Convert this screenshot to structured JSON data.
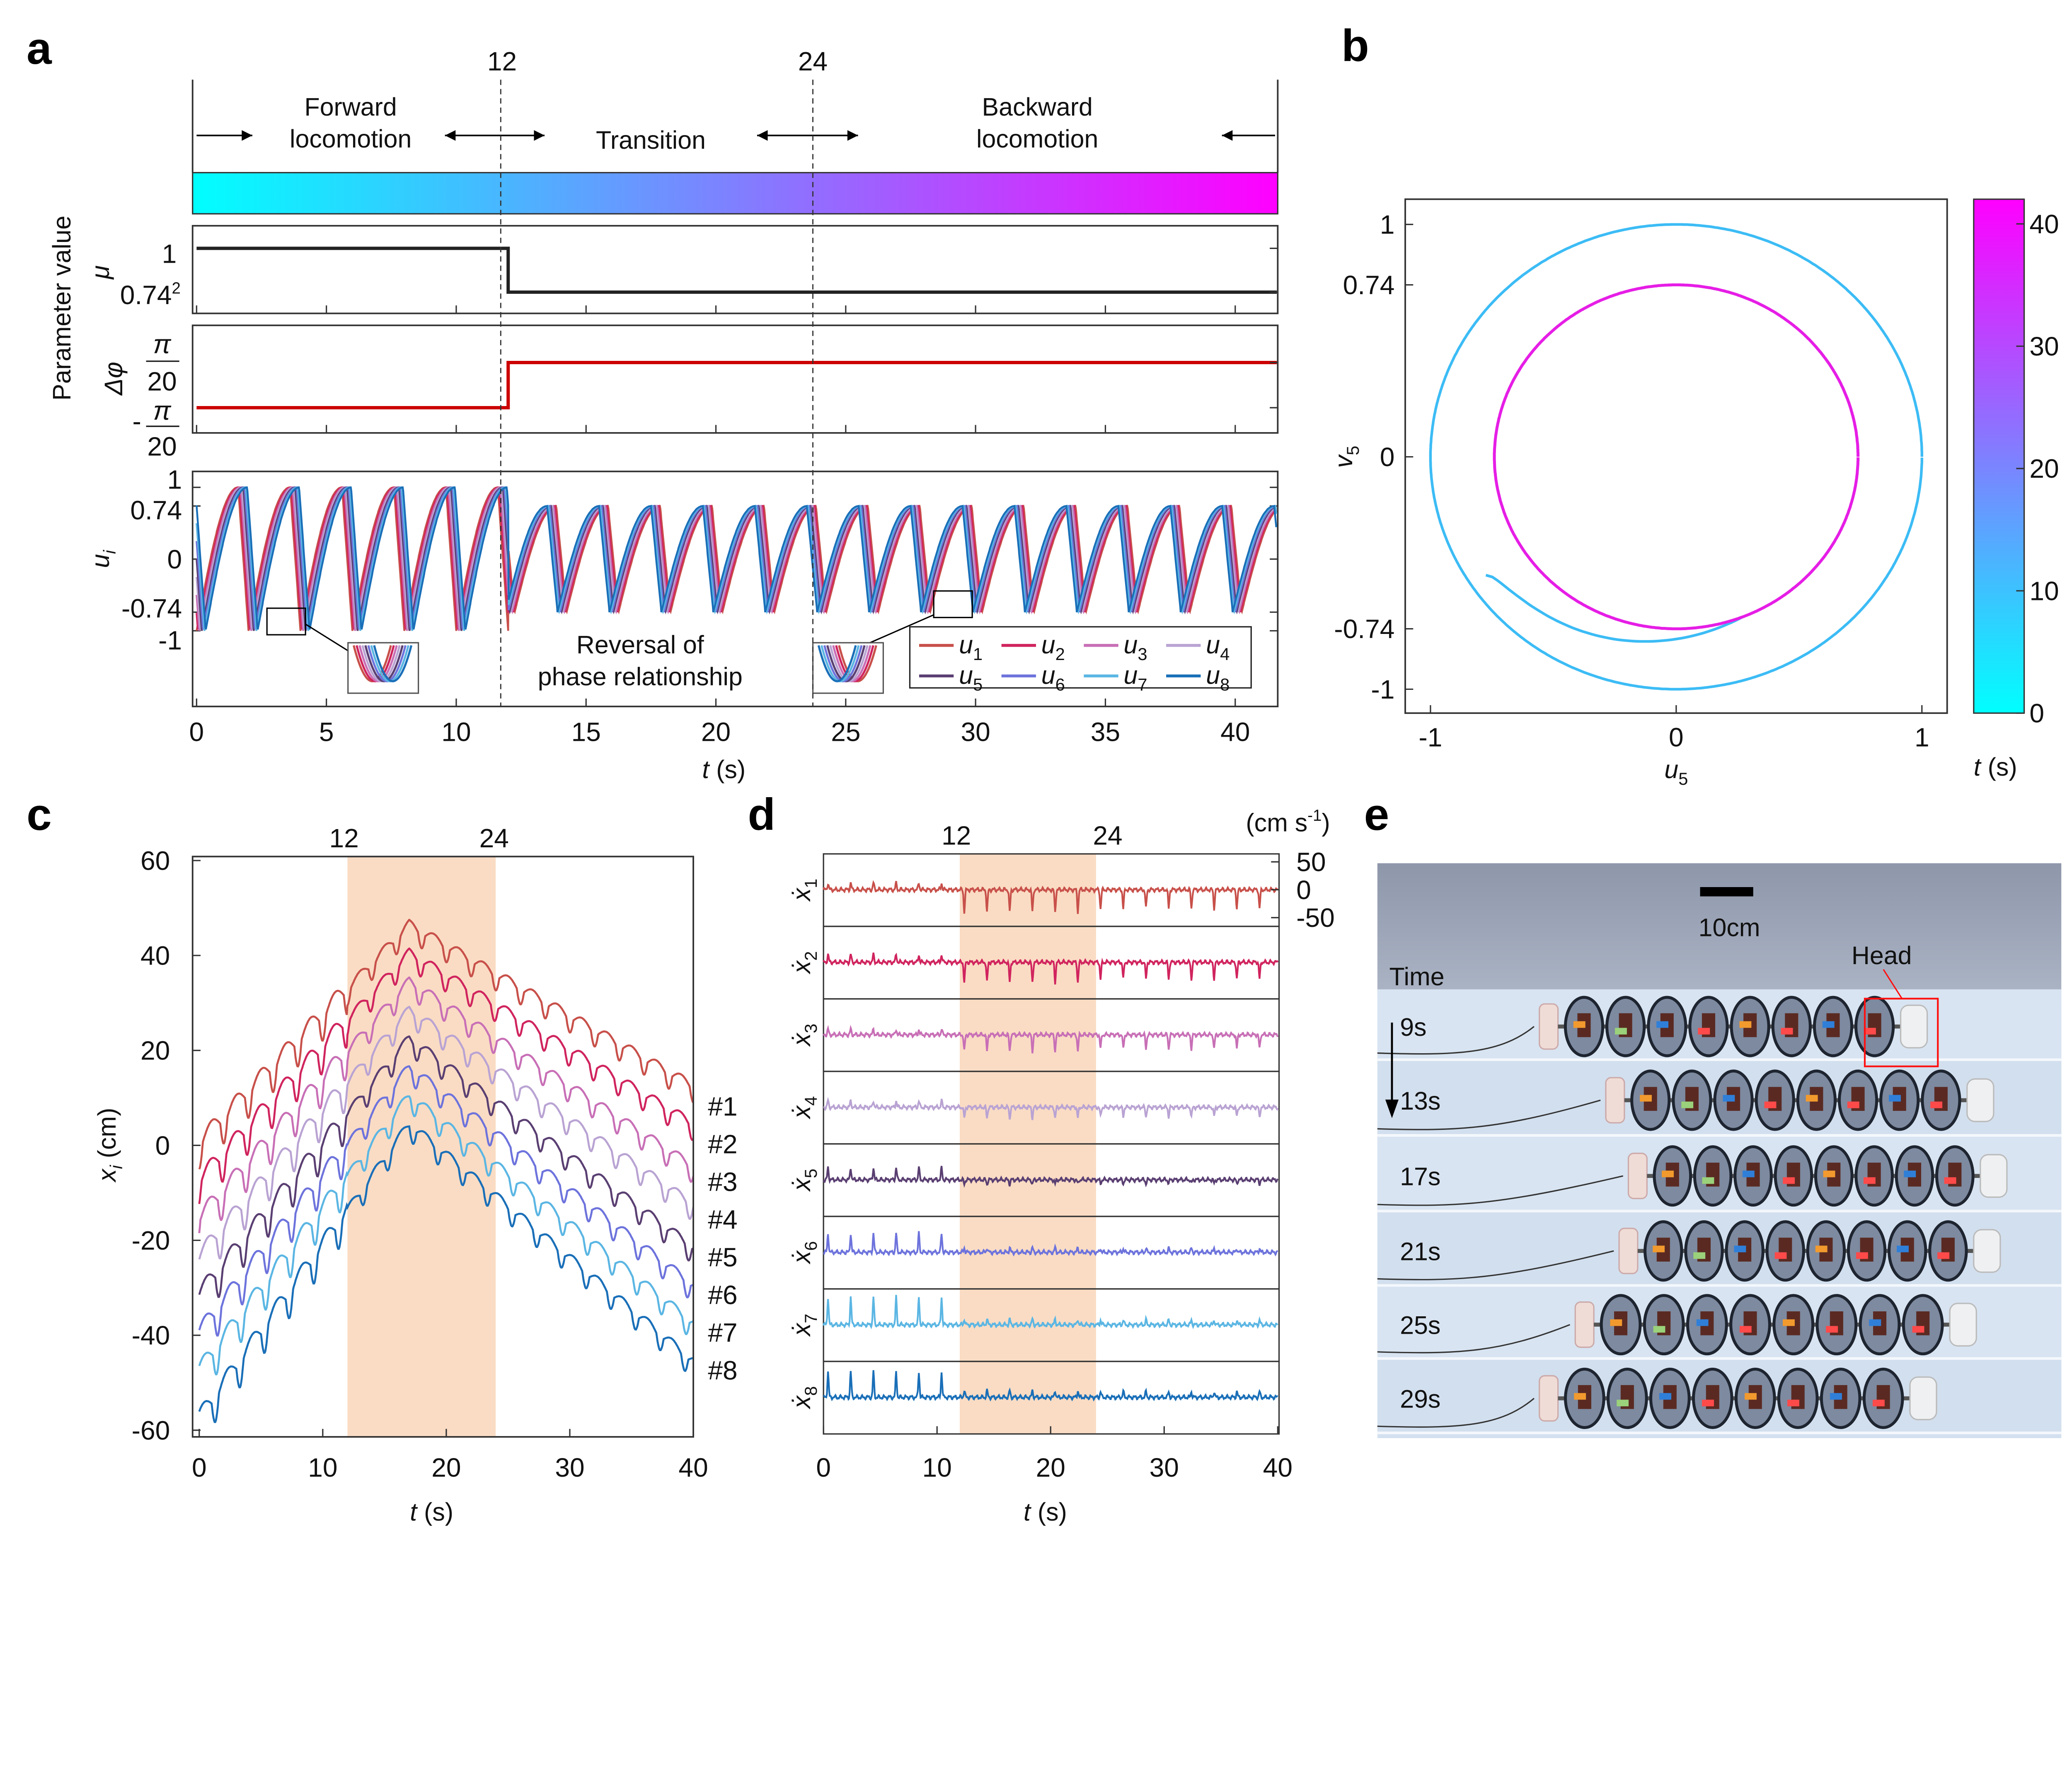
{
  "panel_labels": {
    "a": "a",
    "b": "b",
    "c": "c",
    "d": "d",
    "e": "e"
  },
  "chart_data": [
    {
      "panel": "a",
      "type": "line",
      "ylabel": "Parameter value",
      "xlabel_var": "t",
      "xlabel_unit": " (s)",
      "xticks": [
        0,
        5,
        10,
        15,
        20,
        25,
        30,
        35,
        40
      ],
      "xlim": [
        0,
        41.6
      ],
      "markers": [
        12,
        24
      ],
      "marker_labels": [
        "12",
        "24"
      ],
      "phases": {
        "forward": [
          "Forward",
          "locomotion"
        ],
        "transition": "Transition",
        "backward": [
          "Backward",
          "locomotion"
        ]
      },
      "time_colorbar": {
        "from": "#00ffff",
        "to": "#ff00ff"
      },
      "mu": {
        "label": "μ",
        "tick_top": "1",
        "tick_bottom": "0.74",
        "tick_bottom_sup": "2",
        "color": "#222222",
        "steps": [
          {
            "t0": 0,
            "t1": 12,
            "value": 1
          },
          {
            "t0": 12,
            "t1": 41.6,
            "value": 0.5476
          }
        ]
      },
      "dphi": {
        "label": "Δφ",
        "tick_num": "π",
        "tick_den": "20",
        "tick_neg": "-",
        "color": "#cc0000",
        "steps": [
          {
            "t0": 0,
            "t1": 12,
            "value": -1
          },
          {
            "t0": 12,
            "t1": 41.6,
            "value": 1
          }
        ],
        "value_unit": "π/20"
      },
      "u": {
        "label": "u",
        "label_sub": "i",
        "yticks": [
          1,
          0.74,
          0,
          -0.74,
          -1
        ],
        "ytick_labels": [
          "1",
          "0.74",
          "0",
          "-0.74",
          "-1"
        ],
        "period_s": 2,
        "amplitude_before": 1,
        "amplitude_after": 0.74,
        "switch_t": 12,
        "annotation": [
          "Reversal of",
          "phase relationship"
        ],
        "series": [
          {
            "var": "u",
            "sub": "1",
            "color": "#c8504a"
          },
          {
            "var": "u",
            "sub": "2",
            "color": "#d0245e"
          },
          {
            "var": "u",
            "sub": "3",
            "color": "#c86fb6"
          },
          {
            "var": "u",
            "sub": "4",
            "color": "#b9a3d3"
          },
          {
            "var": "u",
            "sub": "5",
            "color": "#5a3f72"
          },
          {
            "var": "u",
            "sub": "6",
            "color": "#6d73dc"
          },
          {
            "var": "u",
            "sub": "7",
            "color": "#5bb6e3"
          },
          {
            "var": "u",
            "sub": "8",
            "color": "#1a6fb8"
          }
        ]
      }
    },
    {
      "panel": "b",
      "type": "line",
      "xlabel_var": "u",
      "xlabel_sub": "5",
      "ylabel_var": "v",
      "ylabel_sub": "5",
      "xticks": [
        -1,
        0,
        1
      ],
      "xtick_labels": [
        "-1",
        "0",
        "1"
      ],
      "yticks": [
        1,
        0.74,
        0,
        -0.74,
        -1
      ],
      "ytick_labels": [
        "1",
        "0.74",
        "0",
        "-0.74",
        "-1"
      ],
      "outer_radius": 1,
      "inner_radius": 0.74,
      "outer_color": "#3cbcf5",
      "inner_color": "#e61ee6",
      "colorbar": {
        "from": "#00ffff",
        "to": "#ff00ff",
        "ticks": [
          0,
          10,
          20,
          30,
          40
        ],
        "label_var": "t",
        "label_unit": " (s)"
      }
    },
    {
      "panel": "c",
      "type": "line",
      "xlabel_var": "t",
      "xlabel_unit": " (s)",
      "ylabel_var": "x",
      "ylabel_sub": "i",
      "ylabel_unit": " (cm)",
      "xticks": [
        0,
        10,
        20,
        30,
        40
      ],
      "yticks": [
        60,
        40,
        20,
        0,
        -20,
        -40,
        -60
      ],
      "xlim": [
        0,
        40
      ],
      "ylim": [
        -60,
        60
      ],
      "shaded": [
        12,
        24
      ],
      "shade_color": "#fadcc4",
      "marker_labels": [
        "12",
        "24"
      ],
      "period_s": 2,
      "series": [
        {
          "name": "#1",
          "color": "#c8504a",
          "start": 0,
          "peak": 46,
          "end": 12
        },
        {
          "name": "#2",
          "color": "#d0245e",
          "start": -8,
          "peak": 40,
          "end": 4
        },
        {
          "name": "#3",
          "color": "#c86fb6",
          "start": -16,
          "peak": 34,
          "end": -5
        },
        {
          "name": "#4",
          "color": "#b9a3d3",
          "start": -24,
          "peak": 28,
          "end": -13
        },
        {
          "name": "#5",
          "color": "#5a3f72",
          "start": -32,
          "peak": 22,
          "end": -22
        },
        {
          "name": "#6",
          "color": "#6d73dc",
          "start": -40,
          "peak": 16,
          "end": -30
        },
        {
          "name": "#7",
          "color": "#5bb6e3",
          "start": -48,
          "peak": 10,
          "end": -38
        },
        {
          "name": "#8",
          "color": "#1a6fb8",
          "start": -58,
          "peak": 4,
          "end": -46
        }
      ]
    },
    {
      "panel": "d",
      "type": "line",
      "xlabel_var": "t",
      "xlabel_unit": " (s)",
      "xticks": [
        0,
        10,
        20,
        30,
        40
      ],
      "xlim": [
        0,
        40
      ],
      "shaded": [
        12,
        24
      ],
      "shade_color": "#fadcc4",
      "marker_labels": [
        "12",
        "24"
      ],
      "unit_label": "(cm s",
      "unit_sup": "-1",
      "unit_close": ")",
      "yticks": [
        50,
        0,
        -50
      ],
      "ytick_labels": [
        "50",
        "0",
        "-50"
      ],
      "period_s": 2,
      "series": [
        {
          "var": "ẋ",
          "sub": "1",
          "color": "#c8504a",
          "spike_before": 12,
          "spike_after": -40
        },
        {
          "var": "ẋ",
          "sub": "2",
          "color": "#d0245e",
          "spike_before": 14,
          "spike_after": -36
        },
        {
          "var": "ẋ",
          "sub": "3",
          "color": "#c86fb6",
          "spike_before": 10,
          "spike_after": -30
        },
        {
          "var": "ẋ",
          "sub": "4",
          "color": "#b9a3d3",
          "spike_before": 12,
          "spike_after": -20
        },
        {
          "var": "ẋ",
          "sub": "5",
          "color": "#5a3f72",
          "spike_before": 22,
          "spike_after": -8
        },
        {
          "var": "ẋ",
          "sub": "6",
          "color": "#6d73dc",
          "spike_before": 34,
          "spike_after": 8
        },
        {
          "var": "ẋ",
          "sub": "7",
          "color": "#5bb6e3",
          "spike_before": 50,
          "spike_after": 10
        },
        {
          "var": "ẋ",
          "sub": "8",
          "color": "#1a6fb8",
          "spike_before": 46,
          "spike_after": 12
        }
      ]
    }
  ],
  "photo": {
    "scale_label": "10cm",
    "head_label": "Head",
    "time_label": "Time",
    "head_color": "#ff1010",
    "frames": [
      "9s",
      "13s",
      "17s",
      "21s",
      "25s",
      "29s"
    ],
    "marker_colors": [
      "#f29a2e",
      "#9ad17a",
      "#2f7fd8",
      "#ff4a4a",
      "#f29a2e",
      "#ff4a4a",
      "#2f7fd8",
      "#ff4a4a"
    ]
  }
}
